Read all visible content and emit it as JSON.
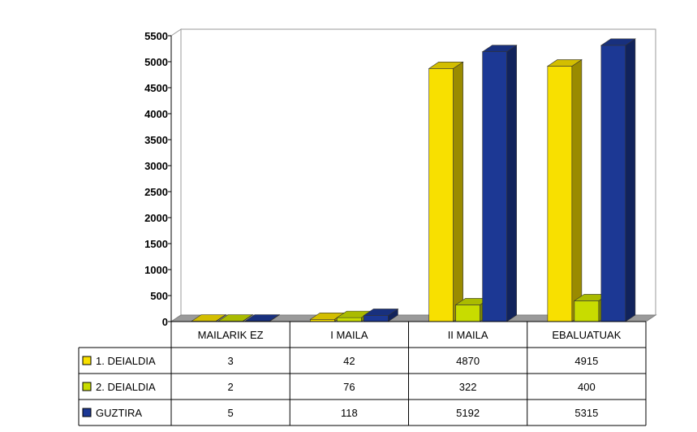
{
  "chart_data": {
    "type": "bar",
    "title": "",
    "xlabel": "",
    "ylabel": "",
    "ylim": [
      0,
      5500
    ],
    "yticks": [
      0,
      500,
      1000,
      1500,
      2000,
      2500,
      3000,
      3500,
      4000,
      4500,
      5000,
      5500
    ],
    "categories": [
      "MAILARIK EZ",
      "I MAILA",
      "II MAILA",
      "EBALUATUAK"
    ],
    "series": [
      {
        "name": "1. DEIALDIA",
        "values": [
          3,
          42,
          4870,
          4915
        ],
        "color": "#f8e000"
      },
      {
        "name": "2. DEIALDIA",
        "values": [
          2,
          76,
          322,
          400
        ],
        "color": "#c8dc00"
      },
      {
        "name": "GUZTIRA",
        "values": [
          5,
          118,
          5192,
          5315
        ],
        "color": "#1c3894"
      }
    ],
    "grid": false,
    "legend": "data-table"
  }
}
